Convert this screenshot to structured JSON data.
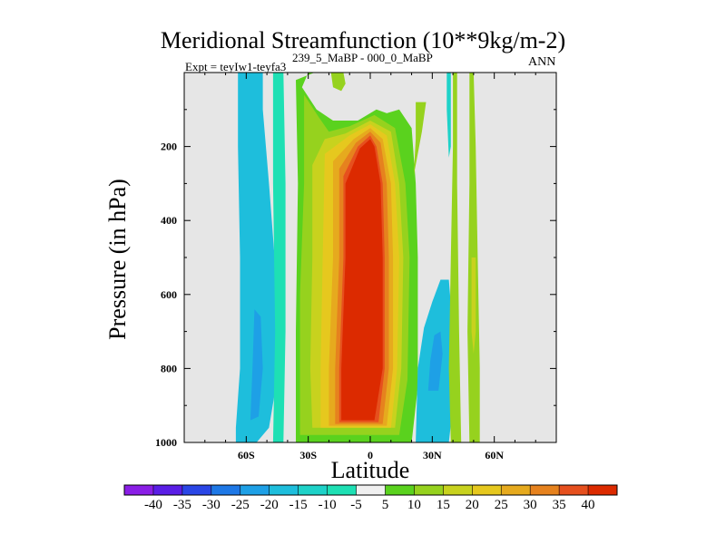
{
  "chart_data": {
    "type": "contour",
    "title": "Meridional Streamfunction (10**9kg/m-2)",
    "subtitle_left": "Expt = teyIw1-teyfa3",
    "subtitle_center": "239_5_MaBP - 000_0_MaBP",
    "subtitle_right": "ANN",
    "xlabel": "Latitude",
    "ylabel": "Pressure (in hPa)",
    "xlim": [
      -90,
      90
    ],
    "ylim": [
      1000,
      0
    ],
    "x_ticks": [
      {
        "value": -60,
        "label": "60S"
      },
      {
        "value": -30,
        "label": "30S"
      },
      {
        "value": 0,
        "label": "0"
      },
      {
        "value": 30,
        "label": "30N"
      },
      {
        "value": 60,
        "label": "60N"
      }
    ],
    "y_ticks": [
      {
        "value": 200,
        "label": "200"
      },
      {
        "value": 400,
        "label": "400"
      },
      {
        "value": 600,
        "label": "600"
      },
      {
        "value": 800,
        "label": "800"
      },
      {
        "value": 1000,
        "label": "1000"
      }
    ],
    "missing_color": "#e6e6e6",
    "colorbar": {
      "levels": [
        "-40",
        "-35",
        "-30",
        "-25",
        "-20",
        "-15",
        "-10",
        "-5",
        "5",
        "10",
        "15",
        "20",
        "25",
        "30",
        "35",
        "40"
      ],
      "colors": [
        "#8a1ee6",
        "#5a1ee6",
        "#2a46e6",
        "#1e78e6",
        "#1ea0e6",
        "#1ebedc",
        "#1ed2c8",
        "#1ee0b4",
        "#f0f0f0",
        "#5ad21e",
        "#96d21e",
        "#c8d21e",
        "#e6c81e",
        "#e6aa1e",
        "#e6821e",
        "#e6501e",
        "#dc2a00"
      ]
    },
    "regions": [
      {
        "name": "sh-outer-cell",
        "level": "-15",
        "points": [
          [
            -65,
            1000
          ],
          [
            -55,
            1000
          ],
          [
            -49,
            960
          ],
          [
            -46,
            860
          ],
          [
            -45,
            700
          ],
          [
            -46,
            520
          ],
          [
            -49,
            300
          ],
          [
            -52,
            100
          ],
          [
            -52,
            0
          ],
          [
            -64,
            0
          ],
          [
            -64,
            200
          ],
          [
            -63,
            500
          ],
          [
            -63,
            800
          ],
          [
            -65,
            960
          ]
        ]
      },
      {
        "name": "sh-outer-core",
        "level": "-20",
        "points": [
          [
            -58,
            940
          ],
          [
            -54,
            930
          ],
          [
            -52,
            800
          ],
          [
            -53,
            660
          ],
          [
            -56,
            640
          ],
          [
            -57,
            800
          ]
        ]
      },
      {
        "name": "sh-edge-cell",
        "level": "-5",
        "points": [
          [
            -47,
            1000
          ],
          [
            -42,
            1000
          ],
          [
            -41,
            700
          ],
          [
            -41,
            300
          ],
          [
            -42,
            0
          ],
          [
            -47,
            0
          ],
          [
            -47,
            300
          ],
          [
            -46,
            700
          ]
        ]
      },
      {
        "name": "tropical-wide",
        "level": "5",
        "points": [
          [
            -36,
            1000
          ],
          [
            20,
            1000
          ],
          [
            23,
            850
          ],
          [
            23,
            500
          ],
          [
            22,
            300
          ],
          [
            20,
            150
          ],
          [
            14,
            100
          ],
          [
            8,
            110
          ],
          [
            3,
            100
          ],
          [
            -6,
            130
          ],
          [
            -18,
            130
          ],
          [
            -26,
            100
          ],
          [
            -33,
            40
          ],
          [
            -30,
            0
          ],
          [
            -27,
            0
          ],
          [
            -36,
            20
          ],
          [
            -35,
            300
          ],
          [
            -36,
            700
          ]
        ]
      },
      {
        "name": "tropical-10",
        "level": "10",
        "points": [
          [
            -34,
            980
          ],
          [
            14,
            980
          ],
          [
            18,
            830
          ],
          [
            19,
            500
          ],
          [
            17,
            300
          ],
          [
            12,
            150
          ],
          [
            2,
            115
          ],
          [
            -10,
            145
          ],
          [
            -20,
            160
          ],
          [
            -25,
            120
          ],
          [
            -32,
            60
          ],
          [
            -32,
            300
          ],
          [
            -34,
            600
          ]
        ]
      },
      {
        "name": "tropical-15",
        "level": "15",
        "points": [
          [
            -28,
            960
          ],
          [
            12,
            960
          ],
          [
            15,
            800
          ],
          [
            16,
            500
          ],
          [
            14,
            300
          ],
          [
            10,
            160
          ],
          [
            0,
            130
          ],
          [
            -12,
            165
          ],
          [
            -22,
            180
          ],
          [
            -28,
            250
          ],
          [
            -28,
            500
          ],
          [
            -29,
            800
          ]
        ]
      },
      {
        "name": "tropical-20",
        "level": "20",
        "points": [
          [
            -24,
            960
          ],
          [
            10,
            960
          ],
          [
            13,
            800
          ],
          [
            14,
            500
          ],
          [
            12,
            300
          ],
          [
            8,
            170
          ],
          [
            0,
            140
          ],
          [
            -10,
            170
          ],
          [
            -22,
            220
          ],
          [
            -23,
            500
          ],
          [
            -24,
            800
          ]
        ]
      },
      {
        "name": "tropical-25",
        "level": "25",
        "points": [
          [
            -20,
            955
          ],
          [
            8,
            955
          ],
          [
            11,
            800
          ],
          [
            11,
            500
          ],
          [
            10,
            300
          ],
          [
            6,
            180
          ],
          [
            0,
            150
          ],
          [
            -8,
            180
          ],
          [
            -18,
            240
          ],
          [
            -18,
            500
          ],
          [
            -20,
            800
          ]
        ]
      },
      {
        "name": "tropical-30",
        "level": "30",
        "points": [
          [
            -17,
            950
          ],
          [
            6,
            950
          ],
          [
            9,
            800
          ],
          [
            9,
            500
          ],
          [
            8,
            300
          ],
          [
            5,
            190
          ],
          [
            0,
            160
          ],
          [
            -7,
            190
          ],
          [
            -15,
            260
          ],
          [
            -15,
            500
          ],
          [
            -17,
            800
          ]
        ]
      },
      {
        "name": "tropical-35",
        "level": "35",
        "points": [
          [
            -15,
            945
          ],
          [
            4,
            945
          ],
          [
            7,
            800
          ],
          [
            7,
            500
          ],
          [
            6,
            300
          ],
          [
            3,
            200
          ],
          [
            0,
            170
          ],
          [
            -6,
            200
          ],
          [
            -13,
            280
          ],
          [
            -13,
            500
          ],
          [
            -15,
            800
          ]
        ]
      },
      {
        "name": "tropical-core",
        "level": "40",
        "points": [
          [
            -14,
            940
          ],
          [
            2,
            940
          ],
          [
            6,
            800
          ],
          [
            6,
            500
          ],
          [
            5,
            300
          ],
          [
            2,
            200
          ],
          [
            0,
            180
          ],
          [
            -5,
            205
          ],
          [
            -12,
            300
          ],
          [
            -12,
            500
          ],
          [
            -14,
            800
          ]
        ]
      },
      {
        "name": "sh-upper-green",
        "level": "10",
        "points": [
          [
            -19,
            0
          ],
          [
            -13,
            0
          ],
          [
            -12,
            30
          ],
          [
            -14,
            50
          ],
          [
            -18,
            40
          ]
        ]
      },
      {
        "name": "nh-green-strip",
        "level": "10",
        "points": [
          [
            22,
            80
          ],
          [
            27,
            80
          ],
          [
            25,
            160
          ],
          [
            21,
            280
          ],
          [
            22,
            180
          ]
        ]
      },
      {
        "name": "nh-blue-cell",
        "level": "-15",
        "points": [
          [
            22,
            1000
          ],
          [
            38,
            1000
          ],
          [
            40,
            900
          ],
          [
            40,
            700
          ],
          [
            38,
            560
          ],
          [
            34,
            560
          ],
          [
            30,
            620
          ],
          [
            26,
            690
          ],
          [
            23,
            800
          ]
        ]
      },
      {
        "name": "nh-blue-core",
        "level": "-20",
        "points": [
          [
            28,
            860
          ],
          [
            33,
            860
          ],
          [
            35,
            760
          ],
          [
            34,
            700
          ],
          [
            31,
            710
          ],
          [
            29,
            780
          ]
        ]
      },
      {
        "name": "nh-mid-green",
        "level": "10",
        "points": [
          [
            39,
            1000
          ],
          [
            44,
            1000
          ],
          [
            43,
            700
          ],
          [
            42,
            300
          ],
          [
            42,
            0
          ],
          [
            40,
            0
          ],
          [
            40,
            200
          ],
          [
            39,
            500
          ],
          [
            38,
            800
          ]
        ]
      },
      {
        "name": "nh-narrow-cyan",
        "level": "-10",
        "points": [
          [
            37,
            0
          ],
          [
            39,
            0
          ],
          [
            39,
            200
          ],
          [
            38,
            230
          ],
          [
            37,
            100
          ]
        ]
      },
      {
        "name": "nh-outer-green",
        "level": "10",
        "points": [
          [
            48,
            1000
          ],
          [
            53,
            1000
          ],
          [
            53,
            800
          ],
          [
            52,
            500
          ],
          [
            51,
            200
          ],
          [
            50,
            0
          ],
          [
            48,
            0
          ],
          [
            48,
            300
          ],
          [
            47,
            700
          ]
        ]
      },
      {
        "name": "nh-outer-yellow",
        "level": "15",
        "points": [
          [
            49,
            500
          ],
          [
            51,
            500
          ],
          [
            51,
            700
          ],
          [
            50,
            760
          ],
          [
            49,
            700
          ]
        ]
      }
    ]
  }
}
